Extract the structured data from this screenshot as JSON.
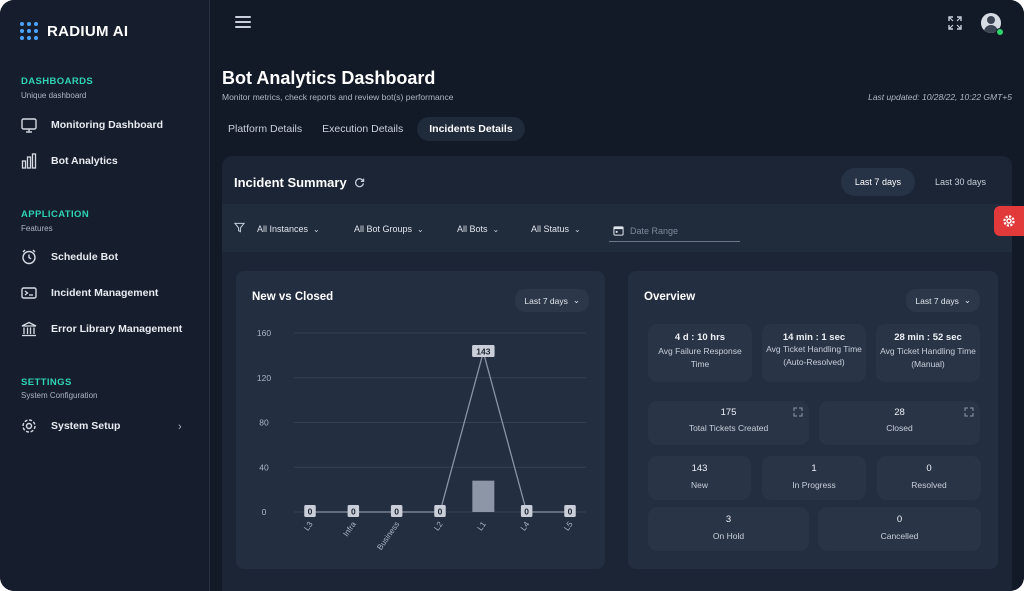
{
  "brand": {
    "name": "RADIUM AI"
  },
  "sidebar": {
    "sections": [
      {
        "title": "DASHBOARDS",
        "subtitle": "Unique dashboard"
      },
      {
        "title": "APPLICATION",
        "subtitle": "Features"
      },
      {
        "title": "SETTINGS",
        "subtitle": "System Configuration"
      }
    ],
    "items": [
      {
        "label": "Monitoring Dashboard",
        "icon": "monitor-icon"
      },
      {
        "label": "Bot Analytics",
        "icon": "bar-chart-icon"
      },
      {
        "label": "Schedule Bot",
        "icon": "clock-icon"
      },
      {
        "label": "Incident Management",
        "icon": "incident-icon"
      },
      {
        "label": "Error Library Management",
        "icon": "library-icon"
      },
      {
        "label": "System Setup",
        "icon": "gear-icon"
      }
    ]
  },
  "header": {
    "title": "Bot Analytics Dashboard",
    "subtitle": "Monitor metrics, check reports and review bot(s) performance",
    "last_updated": "Last updated: 10/28/22, 10:22 GMT+5"
  },
  "tabs": [
    {
      "label": "Platform Details",
      "active": false
    },
    {
      "label": "Execution Details",
      "active": false
    },
    {
      "label": "Incidents Details",
      "active": true
    }
  ],
  "summary": {
    "title": "Incident Summary",
    "ranges": [
      {
        "label": "Last 7 days",
        "active": true
      },
      {
        "label": "Last 30 days",
        "active": false
      }
    ],
    "filters": [
      "All Instances",
      "All Bot Groups",
      "All Bots",
      "All Status"
    ],
    "date_range_placeholder": "Date Range"
  },
  "new_vs_closed": {
    "title": "New vs Closed",
    "range": "Last 7 days"
  },
  "chart_data": {
    "type": "bar",
    "title": "New vs Closed",
    "categories": [
      "L3",
      "Infra",
      "Business",
      "L2",
      "L1",
      "L4",
      "L5"
    ],
    "values": [
      0,
      0,
      0,
      0,
      143,
      0,
      0
    ],
    "bar_values": [
      0,
      0,
      0,
      0,
      28,
      0,
      0
    ],
    "data_labels": [
      "0",
      "0",
      "0",
      "0",
      "143",
      "0",
      "0"
    ],
    "yticks": [
      "0",
      "40",
      "80",
      "120",
      "160"
    ],
    "ylim": [
      0,
      160
    ],
    "grid": true,
    "colors": {
      "line": "#8a93a3",
      "bar": "#8d96a6",
      "grid": "#344055",
      "axis": "#aeb6c4"
    }
  },
  "overview": {
    "title": "Overview",
    "range": "Last 7 days",
    "kpis": [
      {
        "value": "4 d : 10 hrs",
        "label": "Avg Failure Response Time"
      },
      {
        "value": "14 min : 1 sec",
        "label": "Avg Ticket Handling Time (Auto-Resolved)"
      },
      {
        "value": "28 min : 52 sec",
        "label": "Avg Ticket Handling Time (Manual)"
      }
    ],
    "totals": [
      {
        "value": "175",
        "label": "Total Tickets Created"
      },
      {
        "value": "28",
        "label": "Closed"
      }
    ],
    "statuses": [
      {
        "value": "143",
        "label": "New"
      },
      {
        "value": "1",
        "label": "In Progress"
      },
      {
        "value": "0",
        "label": "Resolved"
      },
      {
        "value": "3",
        "label": "On Hold"
      },
      {
        "value": "0",
        "label": "Cancelled"
      }
    ]
  },
  "colors": {
    "accent": "#2fd3b5",
    "brand_blue": "#4aa3ff",
    "settings_fab": "#e23a3a",
    "online": "#2fd36a"
  }
}
